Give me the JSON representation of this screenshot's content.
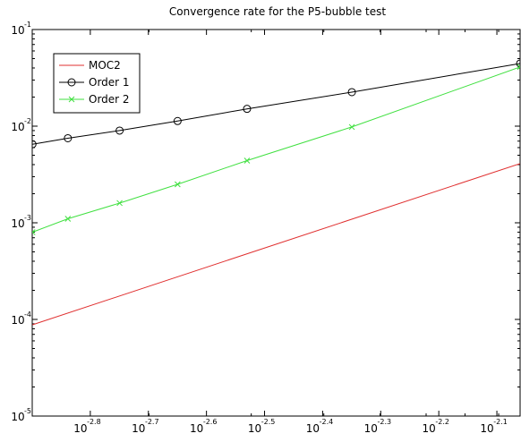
{
  "chart_data": {
    "type": "line",
    "title": "Convergence rate for the P5-bubble test",
    "xlabel": "",
    "ylabel": "",
    "x_scale": "log",
    "y_scale": "log",
    "xlim": [
      -2.9,
      -2.06
    ],
    "ylim": [
      -5,
      -1
    ],
    "x_ticks": [
      {
        "base": "10",
        "exp": "-2.8",
        "value": -2.8
      },
      {
        "base": "10",
        "exp": "-2.7",
        "value": -2.7
      },
      {
        "base": "10",
        "exp": "-2.6",
        "value": -2.6
      },
      {
        "base": "10",
        "exp": "-2.5",
        "value": -2.5
      },
      {
        "base": "10",
        "exp": "-2.4",
        "value": -2.4
      },
      {
        "base": "10",
        "exp": "-2.3",
        "value": -2.3
      },
      {
        "base": "10",
        "exp": "-2.2",
        "value": -2.2
      },
      {
        "base": "10",
        "exp": "-2.1",
        "value": -2.1
      }
    ],
    "y_ticks": [
      {
        "base": "10",
        "exp": "-1",
        "value": -1
      },
      {
        "base": "10",
        "exp": "-2",
        "value": -2
      },
      {
        "base": "10",
        "exp": "-3",
        "value": -3
      },
      {
        "base": "10",
        "exp": "-4",
        "value": -4
      },
      {
        "base": "10",
        "exp": "-5",
        "value": -5
      }
    ],
    "legend_position": "top-left",
    "grid": false,
    "series": [
      {
        "name": "MOC2",
        "color": "#e03030",
        "marker": "none",
        "x": [
          0.00126,
          0.00871
        ],
        "y": [
          8.8e-05,
          0.0041
        ]
      },
      {
        "name": "Order 1",
        "color": "#000000",
        "marker": "circle",
        "x": [
          0.00126,
          0.00145,
          0.00178,
          0.00224,
          0.00295,
          0.00447,
          0.00871
        ],
        "y": [
          0.0065,
          0.0075,
          0.009,
          0.0113,
          0.0151,
          0.0225,
          0.0445
        ]
      },
      {
        "name": "Order 2",
        "color": "#40e040",
        "marker": "x",
        "x": [
          0.00126,
          0.00145,
          0.00178,
          0.00224,
          0.00295,
          0.00447,
          0.00871
        ],
        "y": [
          0.0008,
          0.0011,
          0.0016,
          0.0025,
          0.0044,
          0.0098,
          0.041
        ]
      }
    ]
  }
}
